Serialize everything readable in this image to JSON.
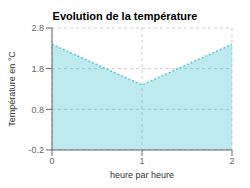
{
  "chart_data": {
    "type": "area",
    "title": "Evolution de la température",
    "xlabel": "heure par heure",
    "ylabel": "Température en °C",
    "x": [
      0,
      1,
      2
    ],
    "values": [
      2.4,
      1.4,
      2.4
    ],
    "xlim": [
      0,
      2
    ],
    "ylim": [
      -0.2,
      2.8
    ],
    "xticks": [
      0,
      1,
      2
    ],
    "yticks": [
      -0.2,
      0.8,
      1.8,
      2.8
    ],
    "color": "#5bc8d8",
    "line_style": "dotted",
    "grid": true
  }
}
